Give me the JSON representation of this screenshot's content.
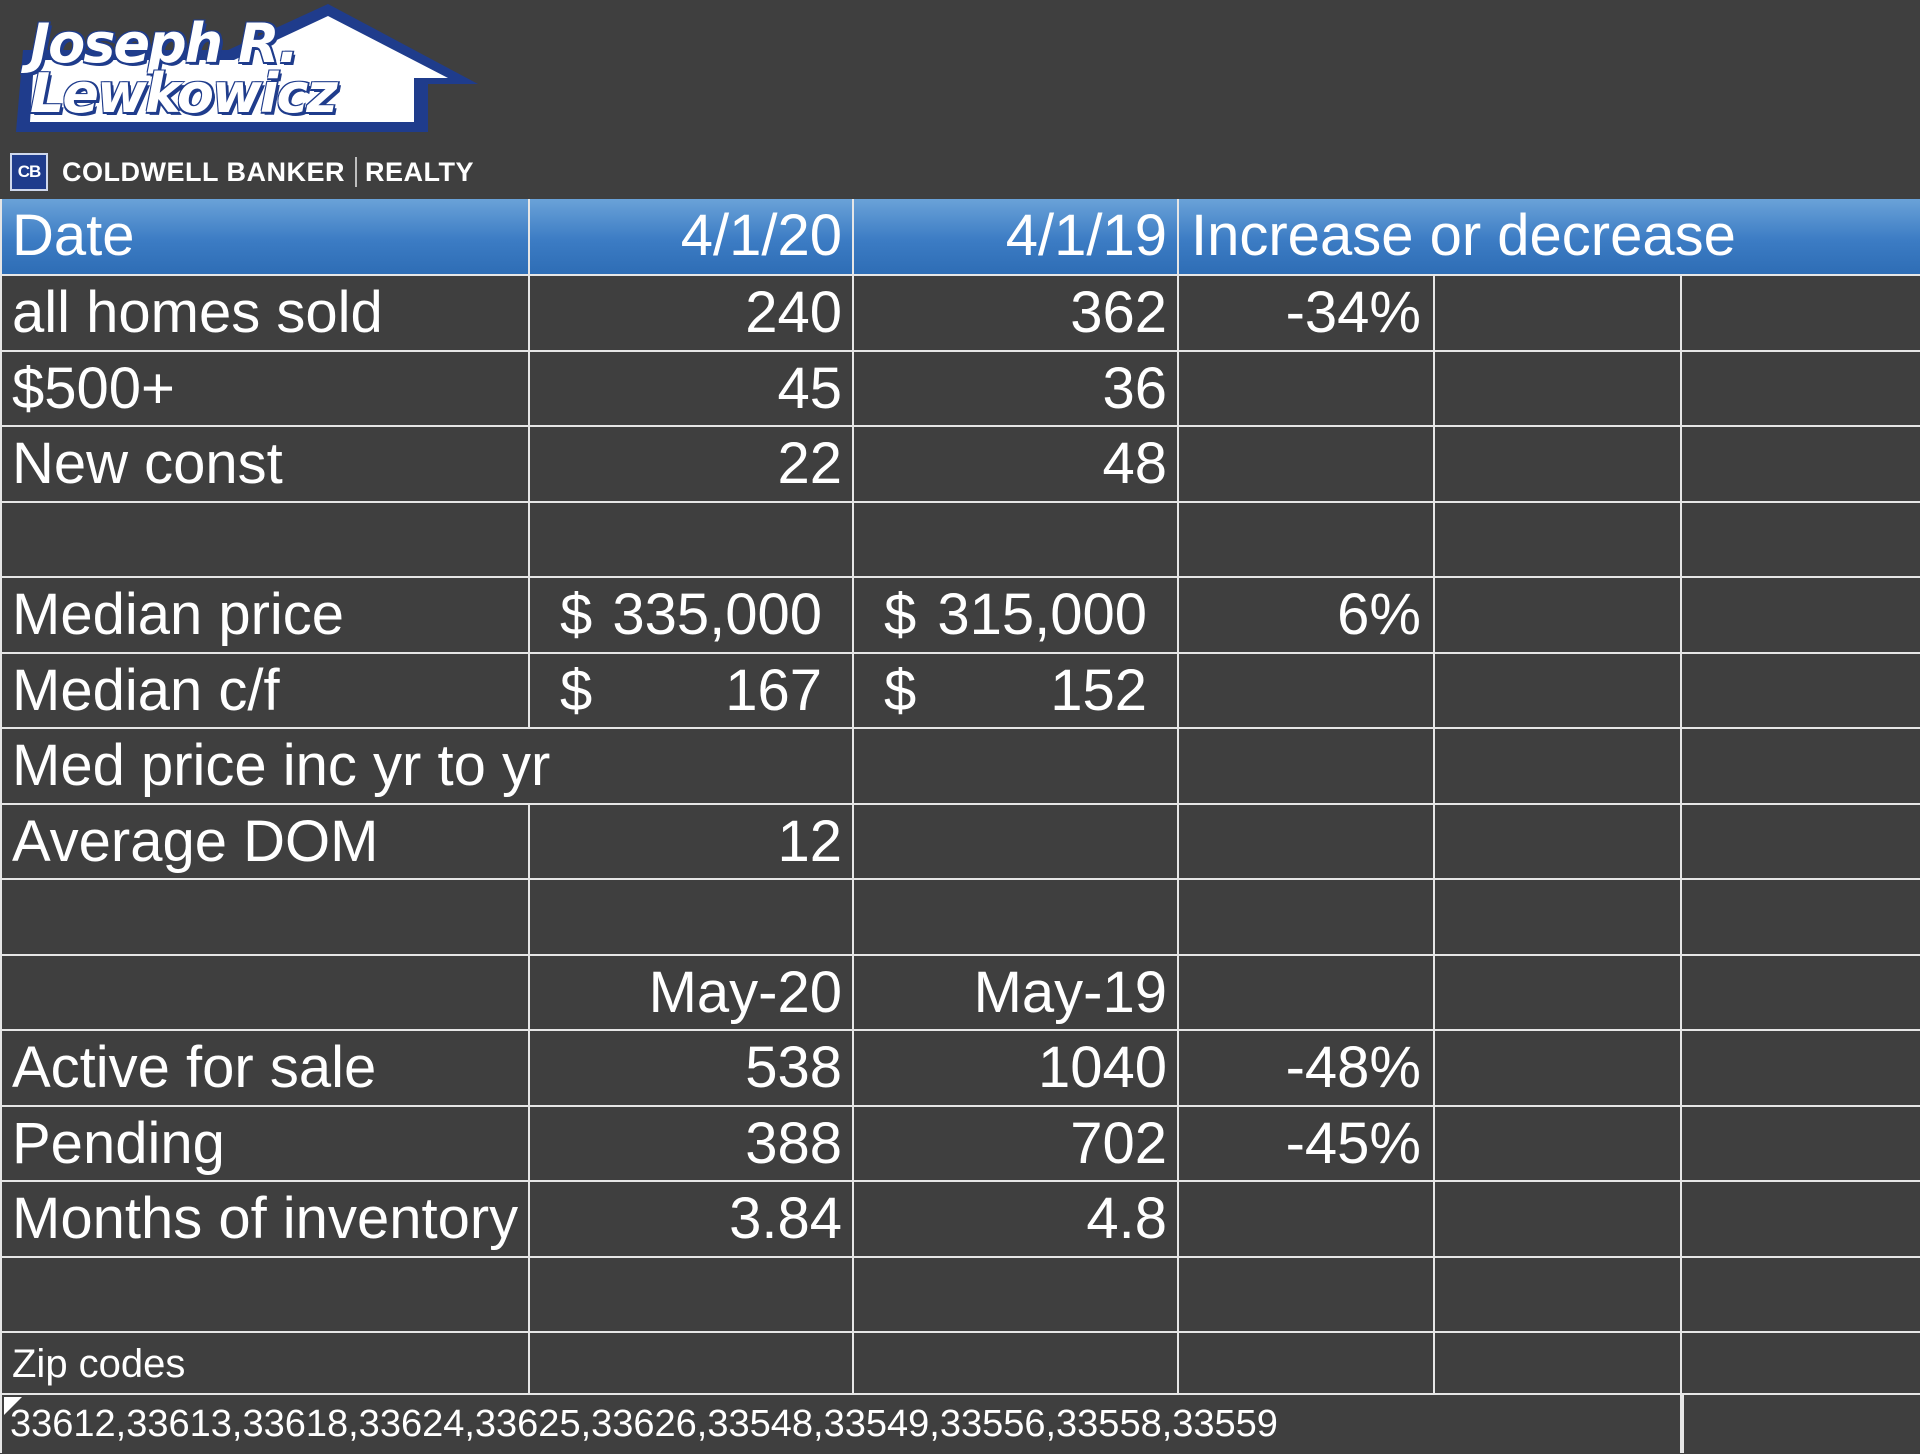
{
  "brand": {
    "name_line1": "Joseph R.",
    "name_line2": "Lewkowicz",
    "cb_icon": "CB",
    "company_left": "COLDWELL BANKER",
    "company_right": "REALTY",
    "colors": {
      "navy": "#1f3c8c",
      "header_blue": "#3c7cc4",
      "background": "#3f3f3f"
    }
  },
  "table": {
    "header": {
      "label": "Date",
      "col1": "4/1/20",
      "col2": "4/1/19",
      "col3": "Increase or decrease"
    },
    "rows": [
      {
        "label": "all homes sold",
        "col1": "240",
        "col2": "362",
        "col3": "-34%"
      },
      {
        "label": "$500+",
        "col1": "45",
        "col2": "36",
        "col3": ""
      },
      {
        "label": "New const",
        "col1": "22",
        "col2": "48",
        "col3": ""
      },
      {
        "label": "",
        "col1": "",
        "col2": "",
        "col3": ""
      },
      {
        "label": "Median price",
        "col1_sym": "$",
        "col1": "335,000",
        "col2_sym": "$",
        "col2": "315,000",
        "col3": "6%"
      },
      {
        "label": "Median c/f",
        "col1_sym": "$",
        "col1": "167",
        "col2_sym": "$",
        "col2": "152",
        "col3": ""
      },
      {
        "label": "Med price inc yr to yr",
        "col1": "",
        "col2": "",
        "col3": ""
      },
      {
        "label": "Average DOM",
        "col1": "12",
        "col2": "",
        "col3": ""
      },
      {
        "label": "",
        "col1": "",
        "col2": "",
        "col3": ""
      },
      {
        "label": "",
        "col1": "May-20",
        "col2": "May-19",
        "col3": ""
      },
      {
        "label": "Active for sale",
        "col1": "538",
        "col2": "1040",
        "col3": "-48%"
      },
      {
        "label": "Pending",
        "col1": "388",
        "col2": "702",
        "col3": "-45%"
      },
      {
        "label": "Months of inventory",
        "col1": "3.84",
        "col2": "4.8",
        "col3": ""
      },
      {
        "label": "",
        "col1": "",
        "col2": "",
        "col3": ""
      }
    ],
    "zip_label": "Zip codes",
    "zip_codes": "33612,33613,33618,33624,33625,33626,33548,33549,33556,33558,33559"
  }
}
